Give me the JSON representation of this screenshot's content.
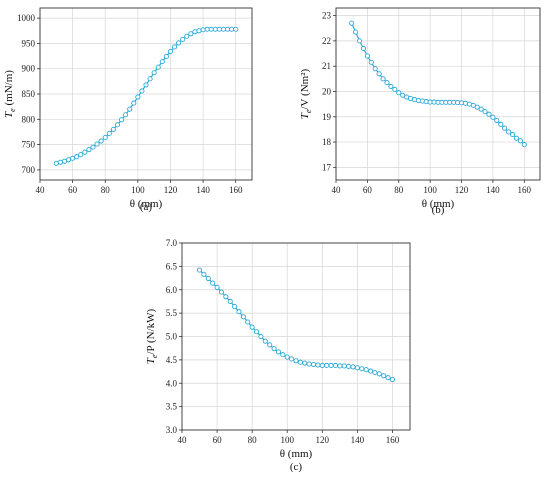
{
  "figure": {
    "line_color": "#2aa8d8",
    "grid_color": "#d6d6d6"
  },
  "chart_data": [
    {
      "type": "line",
      "caption": "(a)",
      "xlabel": "θ (mm)",
      "ylabel": "Te (mN/m)",
      "ylabel_parts": {
        "main": "T",
        "sub": "e",
        "rest": " (mN/m)"
      },
      "xlim": [
        40,
        170
      ],
      "ylim": [
        680,
        1020
      ],
      "xticks": [
        40,
        60,
        80,
        100,
        120,
        140,
        160
      ],
      "yticks": [
        700,
        750,
        800,
        850,
        900,
        950,
        1000
      ],
      "grid": true,
      "series": [
        {
          "x": [
            50,
            52.5,
            55,
            57.5,
            60,
            62.5,
            65,
            67.5,
            70,
            72.5,
            75,
            77.5,
            80,
            82.5,
            85,
            87.5,
            90,
            92.5,
            95,
            97.5,
            100,
            102.5,
            105,
            107.5,
            110,
            112.5,
            115,
            117.5,
            120,
            122.5,
            125,
            127.5,
            130,
            132.5,
            135,
            137.5,
            140,
            142.5,
            145,
            147.5,
            150,
            152.5,
            155,
            157.5,
            160
          ],
          "y": [
            713,
            715,
            717,
            720,
            723,
            726,
            730,
            735,
            740,
            745,
            751,
            757,
            764,
            772,
            780,
            789,
            799,
            809,
            820,
            832,
            844,
            856,
            868,
            880,
            892,
            903,
            914,
            924,
            934,
            943,
            951,
            958,
            964,
            969,
            973,
            975,
            977,
            978,
            978,
            978,
            978,
            978,
            978,
            978,
            978
          ]
        }
      ]
    },
    {
      "type": "line",
      "caption": "(b)",
      "xlabel": "θ (mm)",
      "ylabel": "Te/V (Nm²)",
      "ylabel_parts": {
        "main": "T",
        "sub": "e",
        "rest": "/V (Nm²)"
      },
      "xlim": [
        40,
        170
      ],
      "ylim": [
        16.5,
        23.3
      ],
      "xticks": [
        40,
        60,
        80,
        100,
        120,
        140,
        160
      ],
      "yticks": [
        17,
        18,
        19,
        20,
        21,
        22,
        23
      ],
      "grid": true,
      "series": [
        {
          "x": [
            50,
            52.5,
            55,
            57.5,
            60,
            62.5,
            65,
            67.5,
            70,
            72.5,
            75,
            77.5,
            80,
            82.5,
            85,
            87.5,
            90,
            92.5,
            95,
            97.5,
            100,
            102.5,
            105,
            107.5,
            110,
            112.5,
            115,
            117.5,
            120,
            122.5,
            125,
            127.5,
            130,
            132.5,
            135,
            137.5,
            140,
            142.5,
            145,
            147.5,
            150,
            152.5,
            155,
            157.5,
            160
          ],
          "y": [
            22.7,
            22.35,
            22.0,
            21.7,
            21.4,
            21.15,
            20.9,
            20.7,
            20.5,
            20.35,
            20.2,
            20.08,
            19.95,
            19.85,
            19.78,
            19.72,
            19.68,
            19.64,
            19.62,
            19.6,
            19.58,
            19.58,
            19.57,
            19.57,
            19.57,
            19.57,
            19.57,
            19.56,
            19.55,
            19.53,
            19.5,
            19.45,
            19.38,
            19.3,
            19.2,
            19.1,
            18.98,
            18.85,
            18.7,
            18.55,
            18.4,
            18.3,
            18.15,
            18.05,
            17.9
          ]
        }
      ]
    },
    {
      "type": "line",
      "caption": "(c)",
      "xlabel": "θ (mm)",
      "ylabel": "Te/P (N/kW)",
      "ylabel_parts": {
        "main": "T",
        "sub": "e",
        "rest": "/P (N/kW)"
      },
      "xlim": [
        40,
        170
      ],
      "ylim": [
        3.0,
        7.0
      ],
      "xticks": [
        40,
        60,
        80,
        100,
        120,
        140,
        160
      ],
      "yticks": [
        3.0,
        3.5,
        4.0,
        4.5,
        5.0,
        5.5,
        6.0,
        6.5,
        7.0
      ],
      "grid": true,
      "series": [
        {
          "x": [
            50,
            52.5,
            55,
            57.5,
            60,
            62.5,
            65,
            67.5,
            70,
            72.5,
            75,
            77.5,
            80,
            82.5,
            85,
            87.5,
            90,
            92.5,
            95,
            97.5,
            100,
            102.5,
            105,
            107.5,
            110,
            112.5,
            115,
            117.5,
            120,
            122.5,
            125,
            127.5,
            130,
            132.5,
            135,
            137.5,
            140,
            142.5,
            145,
            147.5,
            150,
            152.5,
            155,
            157.5,
            160
          ],
          "y": [
            6.42,
            6.33,
            6.24,
            6.14,
            6.05,
            5.95,
            5.85,
            5.75,
            5.64,
            5.53,
            5.42,
            5.31,
            5.2,
            5.1,
            5.0,
            4.9,
            4.82,
            4.74,
            4.67,
            4.61,
            4.56,
            4.52,
            4.48,
            4.45,
            4.43,
            4.41,
            4.4,
            4.39,
            4.38,
            4.38,
            4.38,
            4.38,
            4.37,
            4.37,
            4.36,
            4.35,
            4.33,
            4.31,
            4.29,
            4.26,
            4.23,
            4.2,
            4.16,
            4.12,
            4.08
          ]
        }
      ]
    }
  ]
}
